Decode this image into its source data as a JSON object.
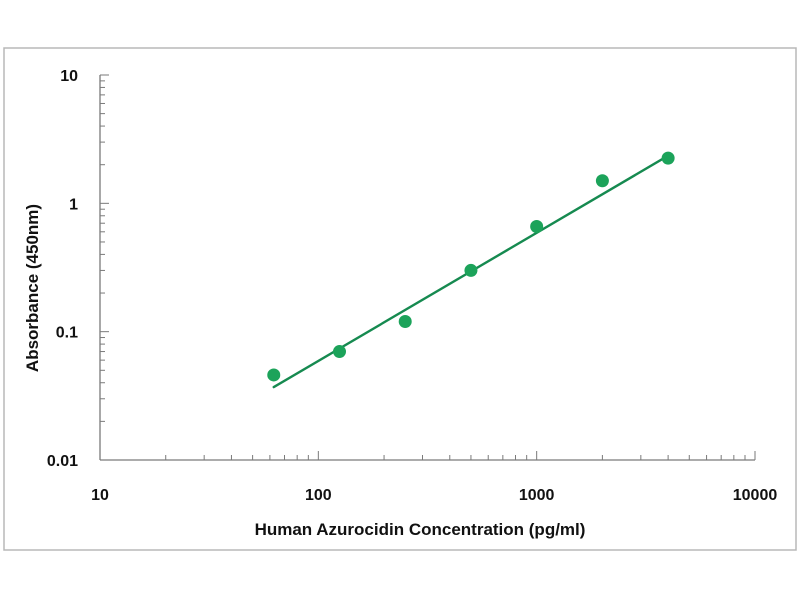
{
  "chart_data": {
    "type": "scatter",
    "title": "",
    "xlabel": "Human Azurocidin Concentration (pg/ml)",
    "ylabel": "Absorbance (450nm)",
    "x_scale": "log",
    "y_scale": "log",
    "xlim": [
      10,
      10000
    ],
    "ylim": [
      0.01,
      10
    ],
    "x_ticks": [
      "10",
      "100",
      "1000",
      "10000"
    ],
    "y_ticks": [
      "10",
      "1",
      "0.1",
      "0.01"
    ],
    "grid": false,
    "legend": "none",
    "series": [
      {
        "x": [
          62.5,
          125,
          250,
          500,
          1000,
          2000,
          4000
        ],
        "y": [
          0.046,
          0.07,
          0.12,
          0.3,
          0.66,
          1.5,
          2.25
        ]
      }
    ],
    "fit_line": {
      "x": [
        62.5,
        4000
      ],
      "y": [
        0.037,
        2.35
      ]
    },
    "colors": {
      "points": "#1ca35a",
      "line": "#168a50",
      "axis": "#7a7a7a",
      "frame": "#b8b8b8",
      "text": "#111111"
    }
  }
}
